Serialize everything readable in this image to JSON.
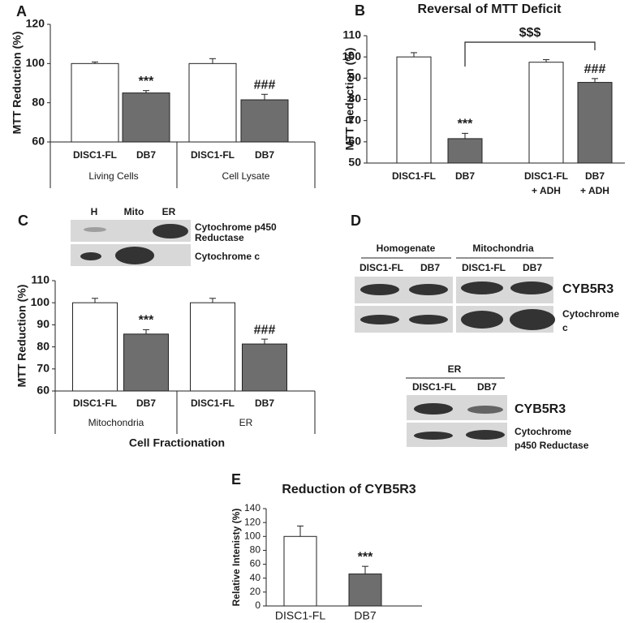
{
  "chart_data": [
    {
      "type": "bar",
      "panel": "A",
      "ylabel": "MTT Reduction (%)",
      "categories": [
        "DISC1-FL",
        "DB7",
        "DISC1-FL",
        "DB7"
      ],
      "groups": [
        "Living Cells",
        "Cell Lysate"
      ],
      "values": [
        100,
        85,
        100,
        81.5
      ],
      "errors": [
        0.8,
        1.2,
        2.5,
        2.8
      ],
      "annotations": [
        null,
        "***",
        null,
        "###"
      ],
      "colors": [
        "#ffffff",
        "#6e6e6e",
        "#ffffff",
        "#6e6e6e"
      ],
      "ylim": [
        60,
        120
      ],
      "yticks": [
        60,
        80,
        100,
        120
      ]
    },
    {
      "type": "bar",
      "panel": "B",
      "title": "Reversal of MTT Deficit",
      "ylabel": "MTT Reduction (%)",
      "categories": [
        [
          "DISC1-FL"
        ],
        [
          "DB7"
        ],
        [
          "DISC1-FL",
          "+ ADH"
        ],
        [
          "DB7",
          "+ ADH"
        ]
      ],
      "values": [
        100,
        61.5,
        97.5,
        88
      ],
      "errors": [
        2,
        2.5,
        1.2,
        1.8
      ],
      "annotations": [
        null,
        "***",
        null,
        "###"
      ],
      "bracket_label": "$$$",
      "colors": [
        "#ffffff",
        "#6e6e6e",
        "#ffffff",
        "#6e6e6e"
      ],
      "ylim": [
        50,
        110
      ],
      "yticks": [
        50,
        60,
        70,
        80,
        90,
        100,
        110
      ]
    },
    {
      "type": "bar",
      "panel": "C",
      "ylabel": "MTT Reduction (%)",
      "xlabel": "Cell Fractionation",
      "categories": [
        "DISC1-FL",
        "DB7",
        "DISC1-FL",
        "DB7"
      ],
      "groups": [
        "Mitochondria",
        "ER"
      ],
      "values": [
        100,
        85.8,
        100,
        81.3
      ],
      "errors": [
        2,
        2,
        2,
        2.2
      ],
      "annotations": [
        null,
        "***",
        null,
        "###"
      ],
      "colors": [
        "#ffffff",
        "#6e6e6e",
        "#ffffff",
        "#6e6e6e"
      ],
      "ylim": [
        60,
        110
      ],
      "yticks": [
        60,
        70,
        80,
        90,
        100,
        110
      ]
    },
    {
      "type": "bar",
      "panel": "E",
      "title": "Reduction of CYB5R3",
      "ylabel": "Relative Intenisty (%)",
      "categories": [
        "DISC1-FL",
        "DB7"
      ],
      "values": [
        100,
        46
      ],
      "errors": [
        15,
        11
      ],
      "annotations": [
        null,
        "***"
      ],
      "colors": [
        "#ffffff",
        "#6e6e6e"
      ],
      "ylim": [
        0,
        140
      ],
      "yticks": [
        0,
        20,
        40,
        60,
        80,
        100,
        120,
        140
      ]
    }
  ],
  "blots": {
    "C": {
      "lanes": [
        "H",
        "Mito",
        "ER"
      ],
      "rows": [
        [
          "Cytochrome p450",
          "Reductase"
        ],
        [
          "Cytochrome c"
        ]
      ]
    },
    "D": {
      "panel": "D",
      "groups": [
        {
          "label": "Homogenate",
          "lanes": [
            "DISC1-FL",
            "DB7"
          ]
        },
        {
          "label": "Mitochondria",
          "lanes": [
            "DISC1-FL",
            "DB7"
          ]
        }
      ],
      "rows": [
        [
          "CYB5R3"
        ],
        [
          "Cytochrome",
          "c"
        ]
      ],
      "er": {
        "label": "ER",
        "lanes": [
          "DISC1-FL",
          "DB7"
        ],
        "rows": [
          [
            "CYB5R3"
          ],
          [
            "Cytochrome",
            "p450 Reductase"
          ]
        ]
      }
    }
  }
}
